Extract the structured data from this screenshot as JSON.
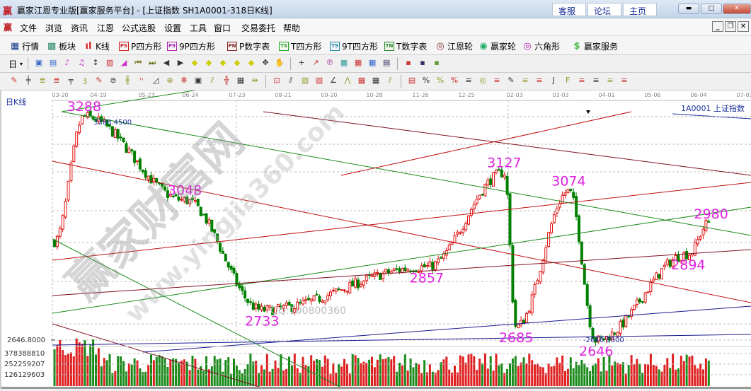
{
  "window": {
    "logo": "赢",
    "title": "赢家江恩专业版[赢家服务平台] - [上证指数  SH1A0001-318日K线]",
    "links": [
      "客服",
      "论坛",
      "主页"
    ],
    "controls": [
      "minimize",
      "maximize",
      "close"
    ]
  },
  "menu": {
    "items": [
      "文件",
      "浏览",
      "资讯",
      "江恩",
      "公式选股",
      "设置",
      "工具",
      "窗口",
      "交易委托",
      "帮助"
    ]
  },
  "toolbar1": [
    {
      "icon": "table-icon",
      "label": "行情",
      "glyph": "▦",
      "color": "#1a3c8a"
    },
    {
      "icon": "blocks-icon",
      "label": "板块",
      "glyph": "▩",
      "color": "#2a8a6a"
    },
    {
      "icon": "kline-icon",
      "label": "K线",
      "glyph": "ıl",
      "color": "#d22"
    },
    {
      "icon": "ps-icon",
      "label": "P四方形",
      "glyph": "PS",
      "color": "#c22"
    },
    {
      "icon": "p9-icon",
      "label": "9P四方形",
      "glyph": "P9",
      "color": "#a2a"
    },
    {
      "icon": "pn-icon",
      "label": "P数字表",
      "glyph": "PN",
      "color": "#822"
    },
    {
      "icon": "ts-icon",
      "label": "T四方形",
      "glyph": "TS",
      "color": "#2a2"
    },
    {
      "icon": "t9-icon",
      "label": "9T四方形",
      "glyph": "T9",
      "color": "#28a"
    },
    {
      "icon": "tn-icon",
      "label": "T数字表",
      "glyph": "TN",
      "color": "#282"
    },
    {
      "icon": "gann-wheel-icon",
      "label": "江恩轮",
      "glyph": "◎",
      "color": "#833"
    },
    {
      "icon": "winner-wheel-icon",
      "label": "赢家轮",
      "glyph": "◉",
      "color": "#2a6"
    },
    {
      "icon": "hexagon-icon",
      "label": "六角形",
      "glyph": "◎",
      "color": "#a2a"
    },
    {
      "icon": "dollar-icon",
      "label": "赢家服务",
      "glyph": "$",
      "color": "#5b5"
    }
  ],
  "toolbar2": {
    "period": "日",
    "icons": [
      "chart-icon",
      "doc-icon",
      "indicator-icon",
      "indicator9-icon",
      "bar-icon",
      "color-icon",
      "triangle-icon",
      "first-icon",
      "last-icon",
      "left-icon",
      "right-icon",
      "zoom-in-icon",
      "zoom-out-icon",
      "expand-icon",
      "shrink-icon",
      "fit-icon",
      "move-icon",
      "hand-icon",
      "cross-icon",
      "draw-icon",
      "text-icon",
      "palette-icon",
      "calendar-icon",
      "calculator-icon",
      "notes-icon",
      "save-icon",
      "print-icon",
      "export-icon"
    ]
  },
  "toolbar3": {
    "icons": [
      "pen-icon",
      "lines-icon",
      "gold1-icon",
      "gold2-icon",
      "fib-icon",
      "spiral-icon",
      "eraser-icon",
      "circle-icon",
      "parallel-icon",
      "n2-icon",
      "angle-icon",
      "target-icon",
      "star-icon",
      "box-icon",
      "arrow-icon",
      "gann-icon",
      "grid-icon",
      "range-icon",
      "measure-icon",
      "fan-icon",
      "square-icon",
      "square2-icon",
      "angle2-icon",
      "wave-icon",
      "grid2-icon",
      "grid3-icon",
      "lines2-icon",
      "ruler-icon",
      "percent-red-icon",
      "percent-icon",
      "percent2-icon",
      "level-icon",
      "gold-circle-icon",
      "gold-level-icon",
      "pen2-icon",
      "level2-icon",
      "gold3-icon",
      "j-icon",
      "f-icon",
      "gold4-icon",
      "line-a-icon",
      "line-b-icon",
      "line-c-icon"
    ]
  },
  "chart": {
    "period_label": "日K线",
    "legend": "1A0001 上证指数",
    "max_label": "3288.4500",
    "min_label": "2646.8000",
    "watermark": [
      "赢家财富网",
      "www.yingjia360.com",
      "QQ:100800360"
    ]
  },
  "chart_data": {
    "type": "candlestick",
    "x_ticks": [
      "03-20",
      "04-19",
      "05-23",
      "06-24",
      "07-23",
      "08-21",
      "09-20",
      "10-28",
      "11-26",
      "12-25",
      "02-03",
      "03-03",
      "04-01",
      "05-06",
      "06-04",
      "07-03"
    ],
    "y_axis_labels": [
      "2646.8000"
    ],
    "volume_axis_labels": [
      "378388810",
      "252259207",
      "126129603"
    ],
    "annotations": [
      {
        "label": "3288",
        "price": 3288,
        "date": "04-08"
      },
      {
        "label": "3048",
        "price": 3048,
        "date": "06-20"
      },
      {
        "label": "2733",
        "price": 2733,
        "date": "08-08"
      },
      {
        "label": "2857",
        "price": 2857,
        "date": "11-30"
      },
      {
        "label": "3127",
        "price": 3127,
        "date": "01-25"
      },
      {
        "label": "2685",
        "price": 2685,
        "date": "02-04"
      },
      {
        "label": "3074",
        "price": 3074,
        "date": "03-08"
      },
      {
        "label": "2646",
        "price": 2646.8,
        "date": "03-25"
      },
      {
        "label": "2894",
        "price": 2894,
        "date": "05-28"
      },
      {
        "label": "2980",
        "price": 2980,
        "date": "06-12"
      }
    ],
    "colors": {
      "up": "#e01010",
      "down": "#008000",
      "label": "#e020e0"
    }
  }
}
